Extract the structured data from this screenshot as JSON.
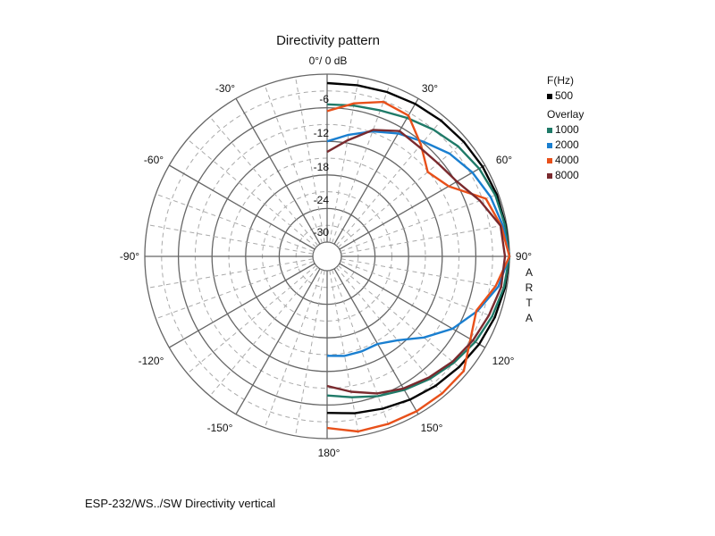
{
  "chart_data": {
    "type": "polar",
    "title": "Directivity pattern",
    "top_label": "0°/ 0 dB",
    "angle_labels": {
      "30": "30°",
      "60": "60°",
      "90": "90°",
      "120": "120°",
      "150": "150°",
      "180": "180°",
      "-30": "-30°",
      "-60": "-60°",
      "-90": "-90°",
      "-120": "-120°",
      "-150": "-150°"
    },
    "radial_labels": [
      "-6",
      "-12",
      "-18",
      "-24",
      "-30"
    ],
    "radial_range_db": [
      -30,
      0
    ],
    "angles_deg": [
      0,
      10,
      20,
      30,
      40,
      50,
      60,
      70,
      80,
      90,
      100,
      110,
      120,
      130,
      140,
      150,
      160,
      170,
      180
    ],
    "series": [
      {
        "name": "500",
        "color": "#000000",
        "values": [
          -1.6,
          -1.5,
          -1.3,
          -1.1,
          -0.9,
          -0.7,
          -0.5,
          -0.3,
          -0.2,
          0,
          -0.3,
          -0.7,
          -1.2,
          -1.8,
          -2.4,
          -3.0,
          -3.6,
          -4.1,
          -4.6
        ]
      },
      {
        "name": "1000",
        "color": "#1f7a68",
        "values": [
          -5.4,
          -5.2,
          -4.8,
          -4.0,
          -3.0,
          -2.0,
          -1.2,
          -0.6,
          -0.3,
          0,
          -0.5,
          -1.2,
          -2.0,
          -3.0,
          -4.0,
          -5.0,
          -6.0,
          -7.0,
          -7.7
        ]
      },
      {
        "name": "2000",
        "color": "#1a7fd0",
        "values": [
          -12,
          -10.5,
          -8.8,
          -7.2,
          -5.8,
          -4.0,
          -2.6,
          -1.5,
          -0.7,
          0,
          -1.5,
          -4.0,
          -6.7,
          -10,
          -13,
          -14.5,
          -14.5,
          -14.5,
          -14.8
        ]
      },
      {
        "name": "4000",
        "color": "#e8501a",
        "values": [
          -6.6,
          -4.8,
          -3.2,
          -3.5,
          -6.5,
          -9.1,
          -7.5,
          -2.4,
          -1.0,
          0,
          -2.0,
          -4.2,
          -3.0,
          -0.7,
          -0.6,
          -0.6,
          -0.7,
          -0.8,
          -1.9
        ]
      },
      {
        "name": "8000",
        "color": "#7a2a2e",
        "values": [
          -13.9,
          -11.5,
          -8.5,
          -6.7,
          -7.0,
          -6.7,
          -5.8,
          -3.5,
          -1.1,
          -0.8,
          -1.0,
          -1.8,
          -2.5,
          -3.3,
          -4.3,
          -5.3,
          -6.5,
          -8.0,
          -9.4
        ]
      }
    ],
    "legend": {
      "header": "F(Hz)",
      "overlay_header": "Overlay",
      "placement": "right"
    },
    "side_text": [
      "A",
      "R",
      "T",
      "A"
    ],
    "caption": "ESP-232/WS../SW   Directivity vertical"
  }
}
